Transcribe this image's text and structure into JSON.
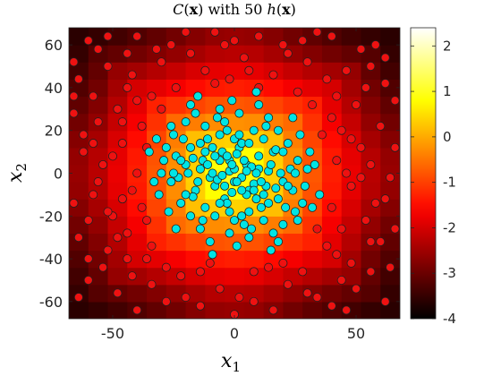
{
  "chart_data": {
    "type": "scatter",
    "title": {
      "c": "C",
      "x": "x",
      "with": "with 50",
      "h": "h"
    },
    "xlabel": {
      "var": "x",
      "sub": "1"
    },
    "ylabel": {
      "var": "x",
      "sub": "2"
    },
    "xlim": [
      -68,
      68
    ],
    "ylim": [
      -68,
      68
    ],
    "xticks": [
      -50,
      0,
      50
    ],
    "xtick_labels": [
      "-50",
      "0",
      "50"
    ],
    "yticks": [
      60,
      40,
      20,
      0,
      -20,
      -40,
      -60
    ],
    "ytick_labels": [
      "60",
      "40",
      "20",
      "0",
      "-20",
      "-40",
      "-60"
    ],
    "colorbar": {
      "range": [
        -4.0,
        2.4
      ],
      "ticks": [
        2,
        1,
        0,
        -1,
        -2,
        -3,
        -4
      ],
      "tick_labels": [
        "2",
        "1",
        "0",
        "-1",
        "-2",
        "-3",
        "-4"
      ],
      "colormap": "hot"
    },
    "background": {
      "description_free_note": "",
      "x_centers": [
        -64,
        -56,
        -48,
        -40,
        -32,
        -24,
        -16,
        -8,
        0,
        8,
        16,
        24,
        32,
        40,
        48,
        56,
        64
      ],
      "profile": [
        -3.6,
        -3.2,
        -2.6,
        -2.0,
        -1.3,
        -0.6,
        0.2,
        0.8,
        1.0,
        0.8,
        0.2,
        -0.6,
        -1.3,
        -2.0,
        -2.6,
        -3.2,
        -3.6
      ]
    },
    "series": [
      {
        "color": "#00e5e5",
        "points": [
          [
            -2,
            1
          ],
          [
            3,
            -2
          ],
          [
            5,
            4
          ],
          [
            -6,
            6
          ],
          [
            8,
            -5
          ],
          [
            -8,
            -6
          ],
          [
            10,
            8
          ],
          [
            -12,
            10
          ],
          [
            12,
            -10
          ],
          [
            -4,
            -12
          ],
          [
            2,
            12
          ],
          [
            -14,
            2
          ],
          [
            14,
            1
          ],
          [
            0,
            -4
          ],
          [
            -2,
            6
          ],
          [
            6,
            -8
          ],
          [
            -10,
            -2
          ],
          [
            10,
            2
          ],
          [
            -16,
            -8
          ],
          [
            16,
            10
          ],
          [
            -18,
            12
          ],
          [
            18,
            -12
          ],
          [
            -20,
            4
          ],
          [
            20,
            -4
          ],
          [
            0,
            16
          ],
          [
            -6,
            18
          ],
          [
            6,
            -18
          ],
          [
            -22,
            -14
          ],
          [
            22,
            14
          ],
          [
            -8,
            -20
          ],
          [
            8,
            20
          ],
          [
            -24,
            8
          ],
          [
            24,
            -8
          ],
          [
            -12,
            22
          ],
          [
            12,
            -22
          ],
          [
            -26,
            -4
          ],
          [
            26,
            6
          ],
          [
            0,
            -22
          ],
          [
            -4,
            24
          ],
          [
            4,
            -24
          ],
          [
            -18,
            -20
          ],
          [
            18,
            20
          ],
          [
            -28,
            12
          ],
          [
            28,
            -14
          ],
          [
            -14,
            -26
          ],
          [
            14,
            26
          ],
          [
            -30,
            0
          ],
          [
            30,
            2
          ],
          [
            -20,
            24
          ],
          [
            20,
            -24
          ],
          [
            -3,
            -14
          ],
          [
            3,
            14
          ],
          [
            -9,
            12
          ],
          [
            9,
            -12
          ],
          [
            -15,
            -4
          ],
          [
            15,
            4
          ],
          [
            -11,
            16
          ],
          [
            11,
            -16
          ],
          [
            -5,
            10
          ],
          [
            5,
            -10
          ],
          [
            -7,
            -3
          ],
          [
            7,
            3
          ],
          [
            -13,
            6
          ],
          [
            13,
            -6
          ],
          [
            -1,
            -9
          ],
          [
            1,
            9
          ],
          [
            -17,
            -11
          ],
          [
            17,
            11
          ],
          [
            -21,
            16
          ],
          [
            21,
            -16
          ],
          [
            -23,
            -2
          ],
          [
            23,
            2
          ],
          [
            -25,
            18
          ],
          [
            25,
            -18
          ],
          [
            -2,
            -28
          ],
          [
            2,
            28
          ],
          [
            -16,
            28
          ],
          [
            16,
            -28
          ],
          [
            -27,
            -18
          ],
          [
            27,
            18
          ],
          [
            -31,
            -10
          ],
          [
            31,
            10
          ],
          [
            -6,
            30
          ],
          [
            6,
            -30
          ],
          [
            -24,
            -26
          ],
          [
            24,
            26
          ],
          [
            -10,
            -32
          ],
          [
            10,
            32
          ],
          [
            -32,
            16
          ],
          [
            32,
            -16
          ],
          [
            -3,
            20
          ],
          [
            3,
            -20
          ],
          [
            -19,
            0
          ],
          [
            19,
            0
          ],
          [
            -12,
            -16
          ],
          [
            12,
            16
          ],
          [
            -7,
            26
          ],
          [
            7,
            -26
          ],
          [
            -22,
            6
          ],
          [
            22,
            -6
          ],
          [
            -4,
            -6
          ],
          [
            4,
            6
          ],
          [
            -9,
            0
          ],
          [
            9,
            0
          ],
          [
            0,
            2
          ],
          [
            -5,
            -1
          ],
          [
            5,
            1
          ],
          [
            -1,
            4
          ],
          [
            1,
            -4
          ],
          [
            -3,
            8
          ],
          [
            3,
            -8
          ],
          [
            -11,
            4
          ],
          [
            11,
            -4
          ],
          [
            -6,
            -14
          ],
          [
            6,
            14
          ],
          [
            -14,
            14
          ],
          [
            14,
            -14
          ],
          [
            -8,
            8
          ],
          [
            8,
            -8
          ],
          [
            -2,
            -18
          ],
          [
            2,
            18
          ],
          [
            -17,
            7
          ],
          [
            17,
            -7
          ],
          [
            -20,
            -10
          ],
          [
            20,
            10
          ],
          [
            -25,
            0
          ],
          [
            25,
            0
          ],
          [
            -13,
            -22
          ],
          [
            13,
            22
          ],
          [
            -29,
            6
          ],
          [
            29,
            -6
          ],
          [
            -1,
            34
          ],
          [
            1,
            -34
          ],
          [
            -18,
            32
          ],
          [
            18,
            -32
          ],
          [
            -33,
            -4
          ],
          [
            33,
            4
          ],
          [
            -26,
            22
          ],
          [
            26,
            -22
          ],
          [
            -9,
            -38
          ],
          [
            9,
            38
          ],
          [
            -35,
            10
          ],
          [
            35,
            -10
          ],
          [
            -15,
            36
          ],
          [
            15,
            -36
          ]
        ]
      },
      {
        "color": "#ee1111",
        "points": [
          [
            -60,
            62
          ],
          [
            -40,
            64
          ],
          [
            -20,
            66
          ],
          [
            0,
            62
          ],
          [
            20,
            60
          ],
          [
            40,
            64
          ],
          [
            58,
            60
          ],
          [
            -64,
            44
          ],
          [
            -52,
            50
          ],
          [
            -44,
            40
          ],
          [
            -30,
            52
          ],
          [
            -12,
            48
          ],
          [
            4,
            54
          ],
          [
            16,
            46
          ],
          [
            30,
            52
          ],
          [
            46,
            48
          ],
          [
            62,
            42
          ],
          [
            -66,
            28
          ],
          [
            -56,
            24
          ],
          [
            -48,
            30
          ],
          [
            -38,
            22
          ],
          [
            -34,
            36
          ],
          [
            40,
            26
          ],
          [
            50,
            32
          ],
          [
            60,
            22
          ],
          [
            -62,
            10
          ],
          [
            -54,
            4
          ],
          [
            -46,
            14
          ],
          [
            -40,
            0
          ],
          [
            42,
            6
          ],
          [
            52,
            12
          ],
          [
            64,
            -2
          ],
          [
            48,
            -6
          ],
          [
            -66,
            -14
          ],
          [
            -58,
            -10
          ],
          [
            -50,
            -20
          ],
          [
            -42,
            -8
          ],
          [
            40,
            -16
          ],
          [
            54,
            -22
          ],
          [
            62,
            -12
          ],
          [
            -64,
            -30
          ],
          [
            -52,
            -36
          ],
          [
            -44,
            -28
          ],
          [
            -36,
            -40
          ],
          [
            38,
            -34
          ],
          [
            48,
            -42
          ],
          [
            60,
            -32
          ],
          [
            -60,
            -50
          ],
          [
            -48,
            -56
          ],
          [
            -34,
            -52
          ],
          [
            -20,
            -58
          ],
          [
            -6,
            -54
          ],
          [
            8,
            -60
          ],
          [
            22,
            -52
          ],
          [
            34,
            -58
          ],
          [
            50,
            -54
          ],
          [
            62,
            -60
          ],
          [
            -40,
            -64
          ],
          [
            0,
            -66
          ],
          [
            40,
            -62
          ],
          [
            -24,
            40
          ],
          [
            -8,
            42
          ],
          [
            10,
            40
          ],
          [
            26,
            38
          ],
          [
            -36,
            -22
          ],
          [
            36,
            18
          ],
          [
            -28,
            -44
          ],
          [
            28,
            -46
          ],
          [
            -14,
            -46
          ],
          [
            14,
            -44
          ],
          [
            -56,
            58
          ],
          [
            -26,
            60
          ],
          [
            10,
            64
          ],
          [
            52,
            58
          ],
          [
            -66,
            36
          ],
          [
            66,
            34
          ],
          [
            -60,
            -40
          ],
          [
            64,
            -44
          ],
          [
            -44,
            56
          ],
          [
            46,
            -64
          ],
          [
            -32,
            58
          ],
          [
            -4,
            60
          ],
          [
            28,
            62
          ],
          [
            56,
            50
          ],
          [
            -58,
            36
          ],
          [
            -42,
            46
          ],
          [
            -18,
            56
          ],
          [
            6,
            48
          ],
          [
            22,
            56
          ],
          [
            38,
            44
          ],
          [
            54,
            40
          ],
          [
            -62,
            18
          ],
          [
            -50,
            8
          ],
          [
            -36,
            12
          ],
          [
            44,
            20
          ],
          [
            56,
            4
          ],
          [
            66,
            12
          ],
          [
            -56,
            -4
          ],
          [
            -46,
            -12
          ],
          [
            46,
            0
          ],
          [
            58,
            -14
          ],
          [
            -60,
            -22
          ],
          [
            -48,
            -30
          ],
          [
            -38,
            -16
          ],
          [
            44,
            -26
          ],
          [
            56,
            -32
          ],
          [
            66,
            -26
          ],
          [
            -54,
            -44
          ],
          [
            -42,
            -48
          ],
          [
            -28,
            -60
          ],
          [
            -14,
            -62
          ],
          [
            2,
            -58
          ],
          [
            16,
            -64
          ],
          [
            30,
            -56
          ],
          [
            44,
            -50
          ],
          [
            56,
            -46
          ],
          [
            -64,
            -58
          ],
          [
            -22,
            -48
          ],
          [
            20,
            -42
          ],
          [
            62,
            54
          ],
          [
            -52,
            64
          ],
          [
            -8,
            66
          ],
          [
            34,
            66
          ],
          [
            -66,
            52
          ],
          [
            -30,
            30
          ],
          [
            32,
            32
          ],
          [
            -34,
            -34
          ],
          [
            34,
            -26
          ],
          [
            -46,
            24
          ],
          [
            48,
            16
          ],
          [
            -40,
            34
          ],
          [
            42,
            36
          ],
          [
            -44,
            -40
          ],
          [
            42,
            -38
          ],
          [
            -10,
            -42
          ],
          [
            8,
            -46
          ],
          [
            -2,
            44
          ],
          [
            -52,
            -18
          ],
          [
            52,
            -2
          ],
          [
            -58,
            14
          ]
        ]
      }
    ]
  }
}
